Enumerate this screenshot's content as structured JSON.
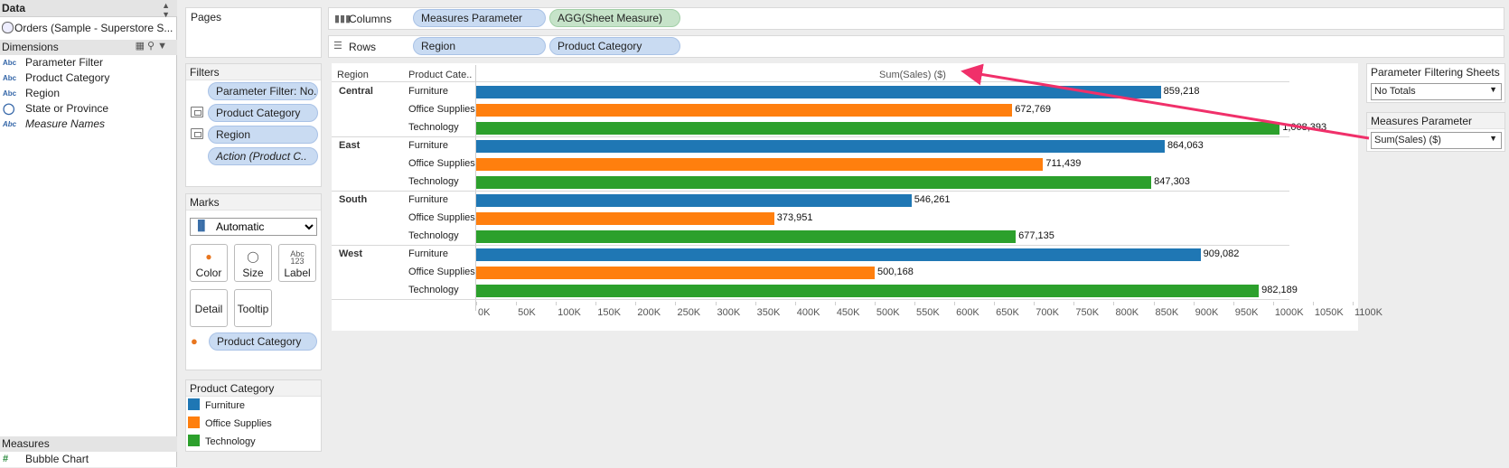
{
  "data_pane": {
    "title": "Data",
    "datasource": "Orders (Sample - Superstore S...",
    "dimensions_label": "Dimensions",
    "dimensions": [
      {
        "icon": "Abc",
        "label": "Parameter Filter",
        "italic": false
      },
      {
        "icon": "Abc",
        "label": "Product Category",
        "italic": false
      },
      {
        "icon": "Abc",
        "label": "Region",
        "italic": false
      },
      {
        "icon": "globe",
        "label": "State or Province",
        "italic": false
      },
      {
        "icon": "Abc",
        "label": "Measure Names",
        "italic": true
      }
    ],
    "measures_label": "Measures",
    "measures": [
      {
        "icon": "#",
        "label": "Bubble Chart"
      }
    ]
  },
  "pages_label": "Pages",
  "columns": {
    "label": "Columns",
    "pills": [
      "Measures Parameter",
      "AGG(Sheet Measure)"
    ]
  },
  "rows": {
    "label": "Rows",
    "pills": [
      "Region",
      "Product Category"
    ]
  },
  "filters": {
    "label": "Filters",
    "pills": [
      "Parameter Filter: No..",
      "Product Category",
      "Region",
      "Action (Product C.."
    ]
  },
  "marks": {
    "label": "Marks",
    "type": "Automatic",
    "buttons": [
      "Color",
      "Size",
      "Label",
      "Detail",
      "Tooltip"
    ],
    "label_symbol": "Abc\n123",
    "color_pill": "Product Category"
  },
  "legend": {
    "title": "Product Category",
    "items": [
      {
        "label": "Furniture",
        "color": "#1f77b4"
      },
      {
        "label": "Office Supplies",
        "color": "#ff7f0e"
      },
      {
        "label": "Technology",
        "color": "#2ca02c"
      }
    ]
  },
  "param_filtering": {
    "title": "Parameter Filtering Sheets",
    "value": "No Totals"
  },
  "measures_param": {
    "title": "Measures Parameter",
    "value": "Sum(Sales) ($)"
  },
  "chart_data": {
    "type": "bar",
    "orientation": "horizontal",
    "row_headers": [
      "Region",
      "Product Cate.."
    ],
    "axis_title": "Sum(Sales) ($)",
    "xlim": [
      0,
      1100000
    ],
    "ticks": [
      "0K",
      "50K",
      "100K",
      "150K",
      "200K",
      "250K",
      "300K",
      "350K",
      "400K",
      "450K",
      "500K",
      "550K",
      "600K",
      "650K",
      "700K",
      "750K",
      "800K",
      "850K",
      "900K",
      "950K",
      "1000K",
      "1050K",
      "1100K"
    ],
    "colors": {
      "Furniture": "#1f77b4",
      "Office Supplies": "#ff7f0e",
      "Technology": "#2ca02c"
    },
    "groups": [
      {
        "region": "Central",
        "rows": [
          {
            "category": "Furniture",
            "value": 859218,
            "label": "859,218"
          },
          {
            "category": "Office Supplies",
            "value": 672769,
            "label": "672,769"
          },
          {
            "category": "Technology",
            "value": 1008393,
            "label": "1,008,393"
          }
        ]
      },
      {
        "region": "East",
        "rows": [
          {
            "category": "Furniture",
            "value": 864063,
            "label": "864,063"
          },
          {
            "category": "Office Supplies",
            "value": 711439,
            "label": "711,439"
          },
          {
            "category": "Technology",
            "value": 847303,
            "label": "847,303"
          }
        ]
      },
      {
        "region": "South",
        "rows": [
          {
            "category": "Furniture",
            "value": 546261,
            "label": "546,261"
          },
          {
            "category": "Office Supplies",
            "value": 373951,
            "label": "373,951"
          },
          {
            "category": "Technology",
            "value": 677135,
            "label": "677,135"
          }
        ]
      },
      {
        "region": "West",
        "rows": [
          {
            "category": "Furniture",
            "value": 909082,
            "label": "909,082"
          },
          {
            "category": "Office Supplies",
            "value": 500168,
            "label": "500,168"
          },
          {
            "category": "Technology",
            "value": 982189,
            "label": "982,189"
          }
        ]
      }
    ]
  },
  "annotation_arrow_color": "#f0306a"
}
